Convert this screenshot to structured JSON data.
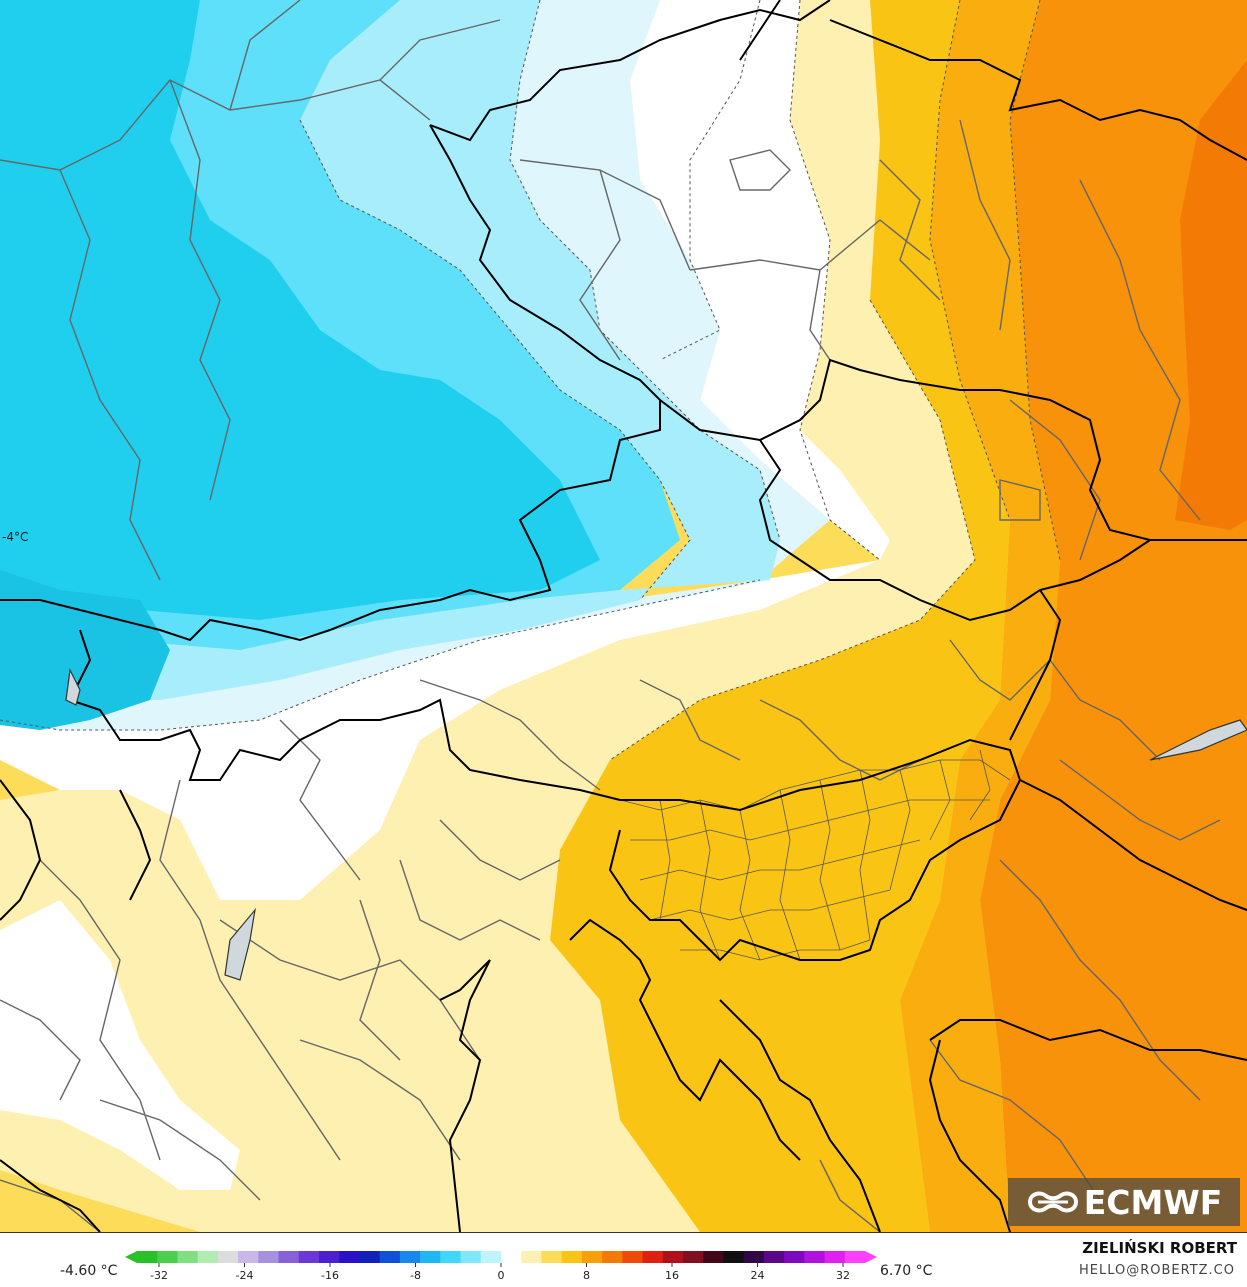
{
  "map": {
    "contour_label": "-4°C",
    "palette": {
      "deep_blue": "#20cfee",
      "mid_blue": "#5fe0fa",
      "light_blue": "#a8edfb",
      "pale_blue": "#dff6fd",
      "white": "#ffffff",
      "pale_yellow": "#fdf0b0",
      "yellow": "#fddc5a",
      "gold": "#f9c413",
      "orange_light": "#f9ad0f",
      "orange": "#f7920a",
      "deep_orange": "#f47a06"
    }
  },
  "logo": {
    "text": "ECMWF",
    "icon": "ecmwf-logo-icon"
  },
  "legend": {
    "min_label": "-4.60 °C",
    "max_label": "6.70 °C",
    "ticks": [
      "-32",
      "-24",
      "-16",
      "-8",
      "0",
      "8",
      "16",
      "24",
      "32"
    ],
    "colors": [
      "#2ac02a",
      "#4bd04b",
      "#7fe07f",
      "#b3ecb3",
      "#dcdcdc",
      "#c8b8e8",
      "#a890e0",
      "#8860d8",
      "#6a38d8",
      "#4a20d0",
      "#2a10c8",
      "#1020b8",
      "#1050d8",
      "#1888ee",
      "#20b8f4",
      "#40d8f8",
      "#80e8fb",
      "#c0f4fd",
      "#ffffff",
      "#fdf0b0",
      "#fddc5a",
      "#f9c413",
      "#f7a00a",
      "#f47a06",
      "#f04a08",
      "#e02010",
      "#b0101a",
      "#801020",
      "#400818",
      "#101010",
      "#300848",
      "#5a0888",
      "#8008c0",
      "#b010e0",
      "#e020f0",
      "#ff40ff"
    ]
  },
  "footer": {
    "author": "ZIELIŃSKI ROBERT",
    "contact": "HELLO@ROBERTZ.CO"
  }
}
